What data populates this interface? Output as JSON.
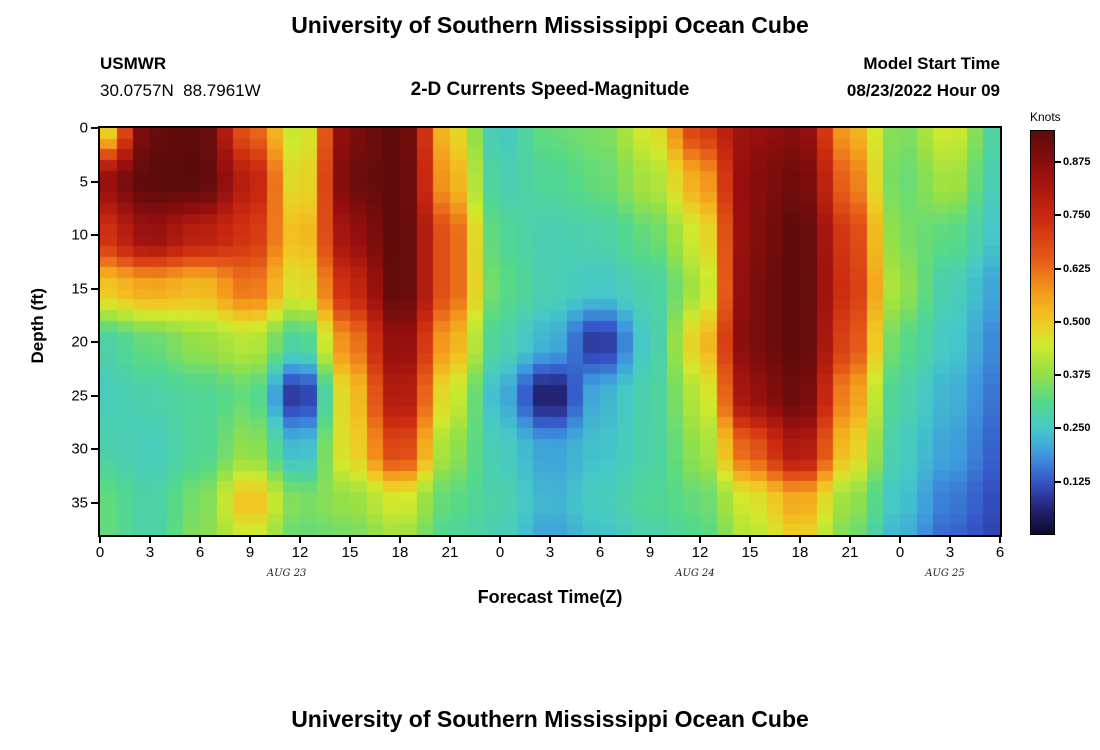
{
  "page": {
    "title": "University of Southern Mississippi Ocean Cube",
    "second_panel_title": "University of Southern Mississippi Ocean Cube"
  },
  "header": {
    "station_id": "USMWR",
    "coordinates": "30.0757N  88.7961W",
    "subtitle": "2-D Currents Speed-Magnitude",
    "model_start_label": "Model Start Time",
    "model_start_value": "08/23/2022 Hour 09"
  },
  "chart_data": {
    "type": "heatmap",
    "title": "2-D Currents Speed-Magnitude",
    "xlabel": "Forecast Time(Z)",
    "ylabel": "Depth (ft)",
    "colorbar_label": "Knots",
    "units": "knots",
    "vmin": 0,
    "vmax": 0.95,
    "x_hours_range": [
      0,
      54
    ],
    "depth_range": [
      0,
      38
    ],
    "xticks": {
      "labels": [
        "0",
        "3",
        "6",
        "9",
        "12",
        "15",
        "18",
        "21",
        "0",
        "3",
        "6",
        "9",
        "12",
        "15",
        "18",
        "21",
        "0",
        "3",
        "6"
      ]
    },
    "yticks": [
      0,
      5,
      10,
      15,
      20,
      25,
      30,
      35
    ],
    "date_labels": [
      {
        "label": "AUG 23",
        "t": 11.2
      },
      {
        "label": "AUG 24",
        "t": 35.7
      },
      {
        "label": "AUG 25",
        "t": 50.7
      }
    ],
    "colorbar_ticks": [
      0.125,
      0.25,
      0.375,
      0.5,
      0.625,
      0.75,
      0.875
    ],
    "colormap_stops": [
      [
        0.0,
        "#0b0b2a"
      ],
      [
        0.07,
        "#27277e"
      ],
      [
        0.13,
        "#3556c8"
      ],
      [
        0.2,
        "#3e9ade"
      ],
      [
        0.26,
        "#45c8c8"
      ],
      [
        0.33,
        "#55d98a"
      ],
      [
        0.4,
        "#96e046"
      ],
      [
        0.47,
        "#d2e92c"
      ],
      [
        0.53,
        "#f0c822"
      ],
      [
        0.6,
        "#f49a1c"
      ],
      [
        0.68,
        "#e65c18"
      ],
      [
        0.78,
        "#cc2a10"
      ],
      [
        0.9,
        "#960f0e"
      ],
      [
        1.0,
        "#5c0b0b"
      ]
    ],
    "grid": {
      "hours": [
        0,
        3,
        6,
        9,
        12,
        15,
        18,
        21,
        24,
        27,
        30,
        33,
        36,
        39,
        42,
        45,
        48,
        51,
        54
      ],
      "depths": [
        0,
        5,
        10,
        15,
        20,
        25,
        30,
        35,
        38
      ],
      "values_knots": [
        [
          0.45,
          0.93,
          0.95,
          0.65,
          0.42,
          0.9,
          0.95,
          0.5,
          0.25,
          0.33,
          0.35,
          0.45,
          0.7,
          0.85,
          0.88,
          0.55,
          0.35,
          0.45,
          0.28
        ],
        [
          0.85,
          0.95,
          0.95,
          0.78,
          0.45,
          0.92,
          0.95,
          0.55,
          0.27,
          0.3,
          0.33,
          0.4,
          0.55,
          0.88,
          0.92,
          0.62,
          0.33,
          0.4,
          0.26
        ],
        [
          0.72,
          0.85,
          0.78,
          0.72,
          0.5,
          0.85,
          0.95,
          0.65,
          0.3,
          0.27,
          0.28,
          0.33,
          0.45,
          0.88,
          0.95,
          0.7,
          0.35,
          0.32,
          0.24
        ],
        [
          0.5,
          0.55,
          0.52,
          0.62,
          0.45,
          0.75,
          0.95,
          0.65,
          0.32,
          0.27,
          0.25,
          0.28,
          0.4,
          0.9,
          0.95,
          0.72,
          0.38,
          0.27,
          0.2
        ],
        [
          0.28,
          0.33,
          0.38,
          0.42,
          0.28,
          0.6,
          0.88,
          0.55,
          0.28,
          0.22,
          0.08,
          0.26,
          0.5,
          0.9,
          0.95,
          0.68,
          0.32,
          0.25,
          0.17
        ],
        [
          0.26,
          0.28,
          0.3,
          0.33,
          0.07,
          0.5,
          0.82,
          0.45,
          0.22,
          0.04,
          0.22,
          0.28,
          0.42,
          0.85,
          0.93,
          0.58,
          0.28,
          0.22,
          0.15
        ],
        [
          0.28,
          0.26,
          0.3,
          0.38,
          0.22,
          0.48,
          0.7,
          0.38,
          0.26,
          0.2,
          0.24,
          0.28,
          0.38,
          0.65,
          0.82,
          0.5,
          0.26,
          0.2,
          0.13
        ],
        [
          0.33,
          0.28,
          0.35,
          0.52,
          0.35,
          0.38,
          0.45,
          0.32,
          0.28,
          0.22,
          0.26,
          0.3,
          0.33,
          0.45,
          0.55,
          0.38,
          0.24,
          0.16,
          0.11
        ],
        [
          0.33,
          0.28,
          0.36,
          0.45,
          0.33,
          0.35,
          0.4,
          0.3,
          0.27,
          0.2,
          0.24,
          0.28,
          0.31,
          0.42,
          0.5,
          0.35,
          0.22,
          0.14,
          0.1
        ]
      ]
    }
  }
}
